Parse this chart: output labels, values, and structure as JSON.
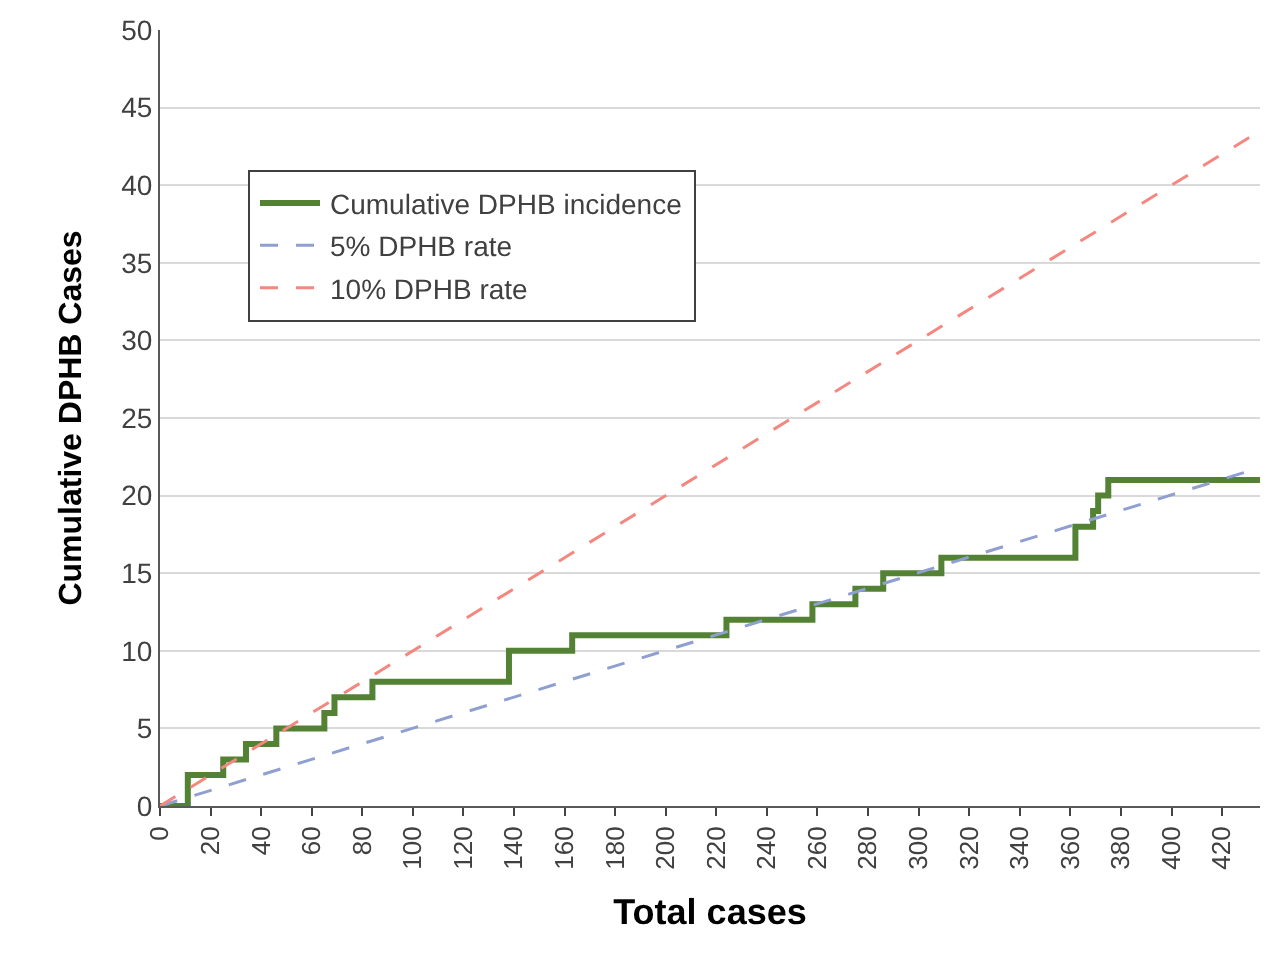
{
  "chart_data": {
    "type": "line",
    "xlabel": "Total cases",
    "ylabel": "Cumulative DPHB Cases",
    "series": [
      {
        "name": "Cumulative DPHB incidence",
        "type": "step",
        "color": "#548235",
        "line_style": "solid",
        "x": [
          0,
          11,
          25,
          34,
          46,
          65,
          69,
          84,
          138,
          163,
          224,
          258,
          275,
          286,
          309,
          362,
          369,
          371,
          375,
          435
        ],
        "values": [
          0,
          2,
          3,
          4,
          5,
          6,
          7,
          8,
          10,
          11,
          12,
          13,
          14,
          15,
          16,
          18,
          19,
          20,
          21,
          21
        ]
      },
      {
        "name": "5% DPHB rate",
        "color": "#8f9fd0",
        "line_style": "dashed",
        "x": [
          0,
          435
        ],
        "values": [
          0,
          21.8
        ]
      },
      {
        "name": "10% DPHB rate",
        "color": "#f4877f",
        "line_style": "dashed",
        "x": [
          0,
          435
        ],
        "values": [
          0,
          43.5
        ]
      }
    ],
    "xlim": [
      0,
      435
    ],
    "xticks": [
      0,
      20,
      40,
      60,
      80,
      100,
      120,
      140,
      160,
      180,
      200,
      220,
      240,
      260,
      280,
      300,
      320,
      340,
      360,
      380,
      400,
      420
    ],
    "ylim": [
      0,
      50
    ],
    "yticks": [
      0,
      5,
      10,
      15,
      20,
      25,
      30,
      35,
      40,
      45,
      50
    ],
    "grid": "y",
    "legend": "top left",
    "marker": "none"
  }
}
